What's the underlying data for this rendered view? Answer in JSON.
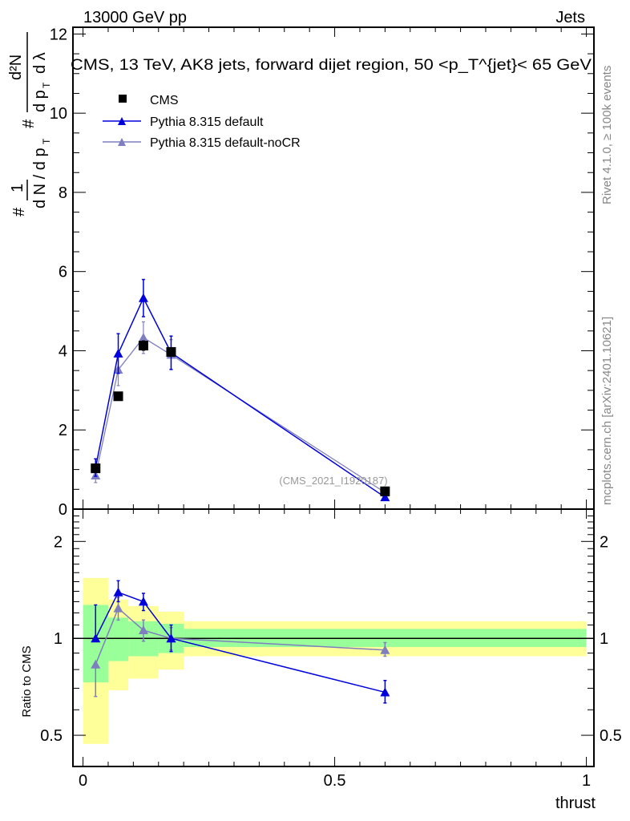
{
  "header": {
    "left": "13000 GeV pp",
    "right": "Jets"
  },
  "side_labels": {
    "top": "Rivet 4.1.0, ≥ 100k events",
    "bottom": "mcplots.cern.ch [arXiv:2401.10621]"
  },
  "watermark": "(CMS_2021_I1920187)",
  "colors": {
    "cms": "#000000",
    "default": "#0000dd",
    "nocr": "#7f7fbf",
    "band_yellow": "#ffff99",
    "band_green": "#99ff99"
  },
  "chart_data": [
    {
      "type": "line",
      "title": "CMS, 13 TeV, AK8 jets, forward dijet region, 50 <p_T^{jet}< 65 GeV",
      "title_main": "CMS, 13 TeV, AK8 jets, forward dijet region, 50 <p",
      "title_sup": "{jet}",
      "title_sub": "T",
      "title_end": "}< 65 GeV",
      "ylabel": "1/dN/dp_T # d²N/dp_T dλ",
      "xlabel": "",
      "xlim": [
        -0.02,
        1.015
      ],
      "ylim": [
        0,
        12.17
      ],
      "yticks": [
        0,
        2,
        4,
        6,
        8,
        10,
        12
      ],
      "ytick_labels": [
        "0",
        "2",
        "4",
        "6",
        "8",
        "10",
        "12"
      ],
      "legend_position": "top-left",
      "x": [
        0.025,
        0.07,
        0.12,
        0.175,
        0.6
      ],
      "series": [
        {
          "name": "CMS",
          "marker": "square",
          "values": [
            1.03,
            2.85,
            4.13,
            3.97,
            0.45
          ],
          "errors": [
            0.1,
            0.08,
            0.12,
            0.1,
            0.03
          ]
        },
        {
          "name": "Pythia 8.315 default",
          "marker": "triangle",
          "values": [
            1.05,
            3.93,
            5.33,
            3.95,
            0.3
          ],
          "errors": [
            0.22,
            0.5,
            0.47,
            0.42,
            0.04
          ]
        },
        {
          "name": "Pythia 8.315 default-noCR",
          "marker": "triangle",
          "values": [
            0.85,
            3.52,
            4.33,
            3.9,
            0.42
          ],
          "errors": [
            0.18,
            0.4,
            0.4,
            0.38,
            0.04
          ]
        }
      ]
    },
    {
      "type": "line",
      "ylabel": "Ratio to CMS",
      "xlabel": "thrust",
      "yscale": "log",
      "xlim": [
        -0.02,
        1.015
      ],
      "ylim": [
        0.4,
        2.52
      ],
      "xticks": [
        0,
        0.5,
        1
      ],
      "xtick_labels": [
        "0",
        "0.5",
        "1"
      ],
      "yticks": [
        0.5,
        1,
        2
      ],
      "ytick_labels": [
        "0.5",
        "1",
        "2"
      ],
      "bin_edges": [
        0,
        0.05,
        0.09,
        0.15,
        0.2,
        1.0
      ],
      "band_yellow": {
        "low": [
          0.47,
          0.69,
          0.75,
          0.8,
          0.88
        ],
        "high": [
          1.54,
          1.32,
          1.26,
          1.21,
          1.13
        ]
      },
      "band_green": {
        "low": [
          0.73,
          0.85,
          0.88,
          0.9,
          0.94
        ],
        "high": [
          1.27,
          1.16,
          1.13,
          1.11,
          1.07
        ]
      },
      "x": [
        0.025,
        0.07,
        0.12,
        0.175,
        0.6
      ],
      "series": [
        {
          "name": "Pythia 8.315 default",
          "values": [
            1.0,
            1.39,
            1.3,
            1.0,
            0.68
          ],
          "err_low": [
            0.0,
            0.09,
            0.08,
            0.09,
            0.05
          ],
          "err_high": [
            0.27,
            0.12,
            0.08,
            0.1,
            0.06
          ]
        },
        {
          "name": "Pythia 8.315 default-noCR",
          "values": [
            0.83,
            1.24,
            1.06,
            1.0,
            0.92
          ],
          "err_low": [
            0.17,
            0.1,
            0.08,
            0.08,
            0.04
          ],
          "err_high": [
            0.0,
            0.1,
            0.08,
            0.08,
            0.05
          ]
        }
      ]
    }
  ]
}
